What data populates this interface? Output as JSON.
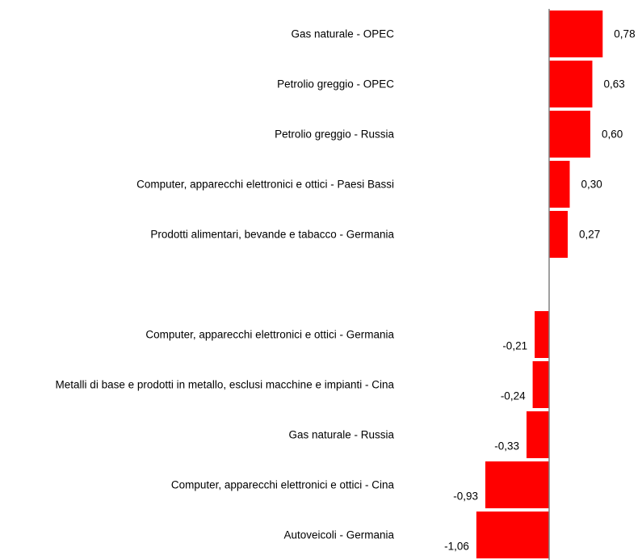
{
  "chart_data": {
    "type": "bar",
    "orientation": "horizontal",
    "categories": [
      "Gas naturale - OPEC",
      "Petrolio greggio - OPEC",
      "Petrolio greggio - Russia",
      "Computer, apparecchi elettronici e ottici - Paesi Bassi",
      "Prodotti alimentari, bevande e tabacco - Germania",
      "",
      "Computer, apparecchi elettronici e ottici - Germania",
      "Metalli di base e prodotti in metallo, esclusi macchine e impianti - Cina",
      "Gas naturale - Russia",
      "Computer, apparecchi elettronici e ottici - Cina",
      "Autoveicoli - Germania"
    ],
    "values": [
      0.78,
      0.63,
      0.6,
      0.3,
      0.27,
      null,
      -0.21,
      -0.24,
      -0.33,
      -0.93,
      -1.06
    ],
    "value_labels": [
      "0,78",
      "0,63",
      "0,60",
      "0,30",
      "0,27",
      "",
      "-0,21",
      "-0,24",
      "-0,33",
      "-0,93",
      "-1,06"
    ],
    "bar_color": "#ff0000",
    "axis_color": "#808080",
    "title": "",
    "xlabel": "",
    "ylabel": "",
    "grid": false,
    "legend": "none"
  }
}
